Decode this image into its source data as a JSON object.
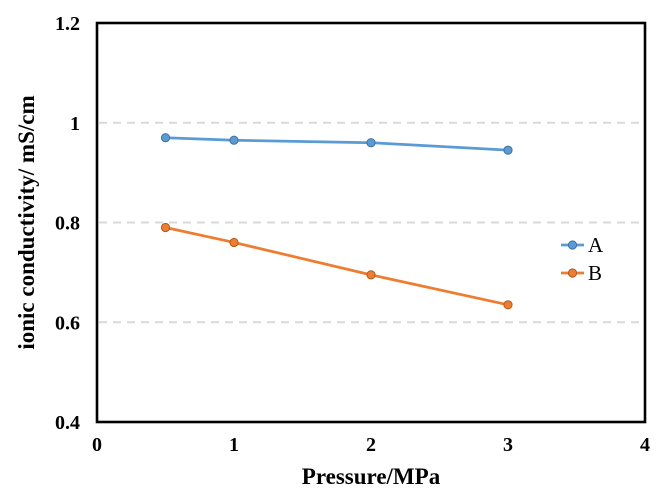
{
  "chart_data": {
    "type": "line",
    "title": "",
    "xlabel": "Pressure/MPa",
    "ylabel": "ionic conductivity/ mS/cm",
    "x": [
      0.5,
      1,
      2,
      3
    ],
    "series": [
      {
        "name": "A",
        "color": "#5B9BD5",
        "marker_border": "#41719C",
        "values": [
          0.97,
          0.965,
          0.96,
          0.945
        ]
      },
      {
        "name": "B",
        "color": "#ED7D31",
        "marker_border": "#AE5A21",
        "values": [
          0.79,
          0.76,
          0.695,
          0.635
        ]
      }
    ],
    "xlim": [
      0,
      4
    ],
    "ylim": [
      0.4,
      1.2
    ],
    "x_ticks": [
      0,
      1,
      2,
      3,
      4
    ],
    "x_tick_labels": [
      "0",
      "1",
      "2",
      "3",
      "4"
    ],
    "y_ticks": [
      0.4,
      0.6,
      0.8,
      1,
      1.2
    ],
    "y_tick_labels": [
      "0.4",
      "0.6",
      "0.8",
      "1",
      "1.2"
    ],
    "grid": "horizontal-dashed",
    "grid_color": "#D9D9D9",
    "axis_color": "#000000",
    "background": "#FFFFFF",
    "legend_position": "inside-right",
    "legend_labels": [
      "A",
      "B"
    ]
  }
}
